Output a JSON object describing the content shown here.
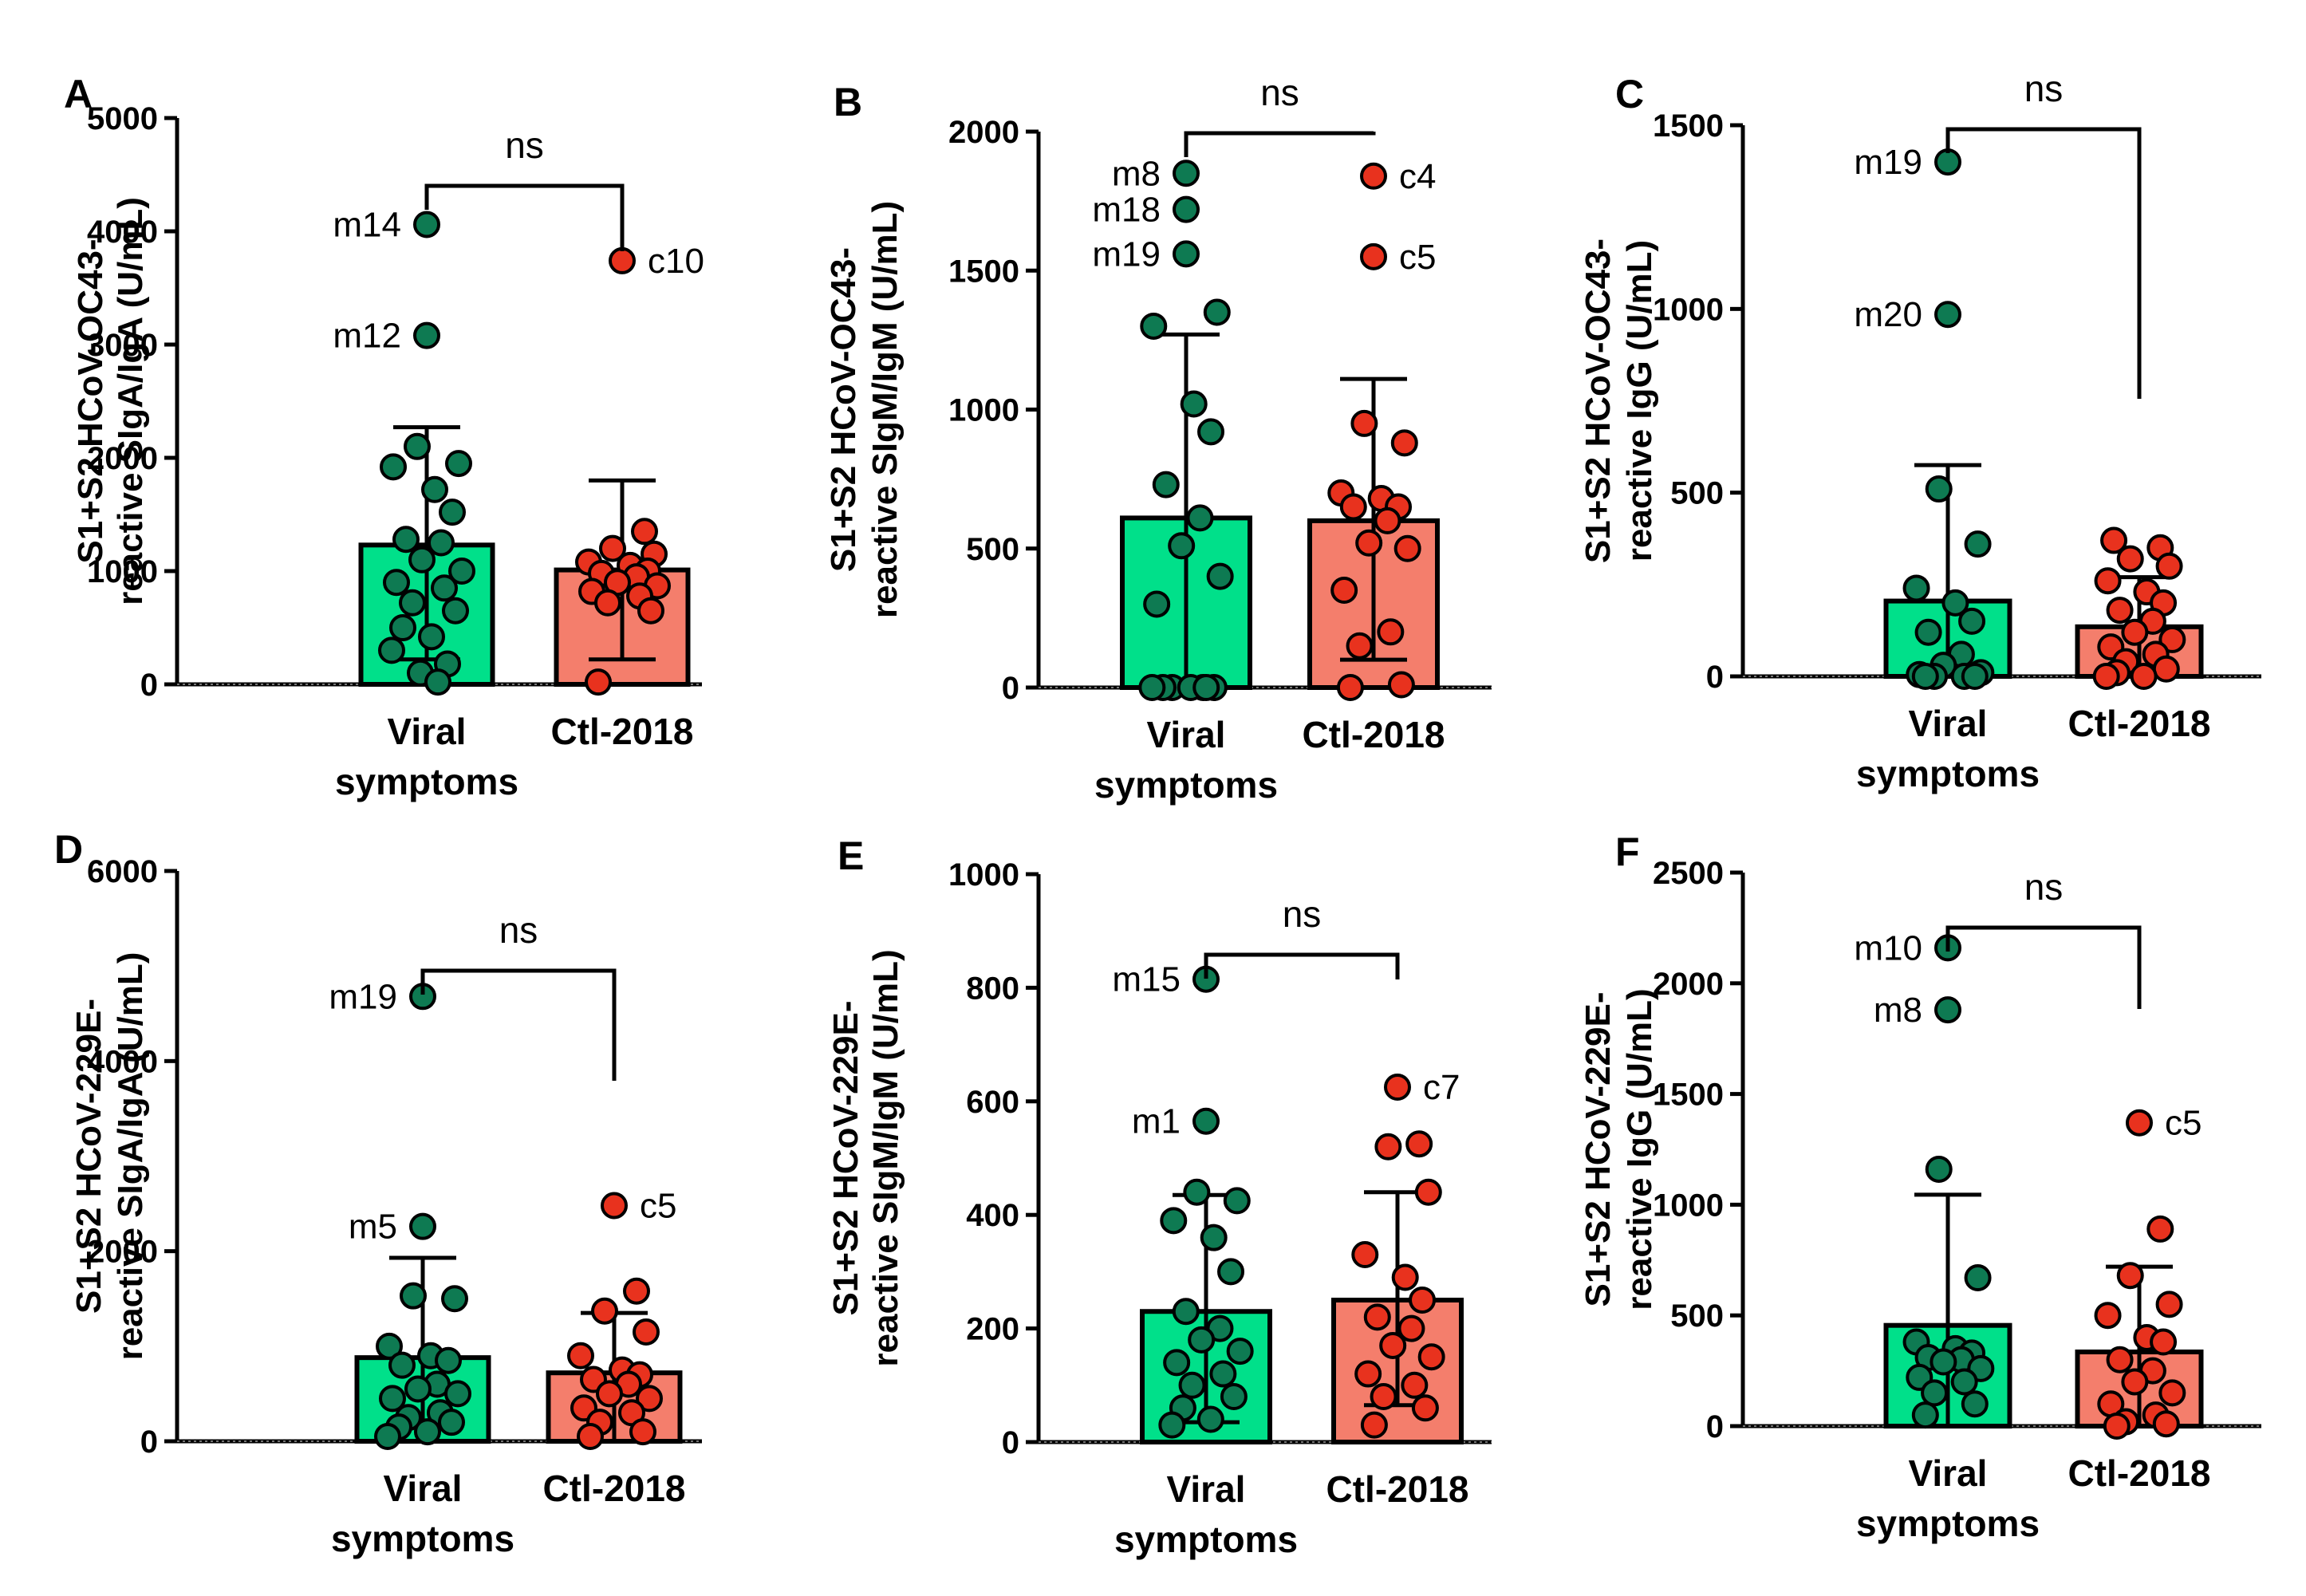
{
  "colors": {
    "viral_bar": "#00e08a",
    "viral_point": "#0e7a52",
    "control_bar": "#f47e6c",
    "control_point": "#e8321e",
    "outline": "#000000"
  },
  "chart_data": [
    {
      "panel": "A",
      "type": "bar",
      "ylabel_line1": "S1+S2 HCoV-OC43-",
      "ylabel_line2": "reactive SIgA/IgA (U/mL)",
      "ylim": [
        0,
        5000
      ],
      "yticks": [
        0,
        1000,
        2000,
        3000,
        4000,
        5000
      ],
      "significance": "ns",
      "groups": [
        {
          "name": "viral",
          "label_line1": "Viral",
          "label_line2": "symptoms",
          "mean": 1230,
          "sd_low": 220,
          "sd_high": 2270,
          "points": [
            4060,
            3080,
            2100,
            1950,
            1920,
            1720,
            1520,
            1280,
            1250,
            1100,
            1000,
            900,
            850,
            720,
            650,
            500,
            420,
            300,
            180,
            100,
            20
          ],
          "labels": [
            {
              "text": "m14",
              "value": 4060
            },
            {
              "text": "m12",
              "value": 3080
            }
          ]
        },
        {
          "name": "control",
          "label_line1": "Ctl-2018",
          "label_line2": "",
          "mean": 1010,
          "sd_low": 220,
          "sd_high": 1800,
          "points": [
            3740,
            1350,
            1200,
            1150,
            1080,
            1050,
            1000,
            980,
            950,
            900,
            870,
            820,
            780,
            720,
            650,
            20
          ],
          "labels": [
            {
              "text": "c10",
              "value": 3740
            }
          ]
        }
      ]
    },
    {
      "panel": "B",
      "type": "bar",
      "ylabel_line1": "S1+S2 HCoV-OC43-",
      "ylabel_line2": "reactive SIgM/IgM (U/mL)",
      "ylim": [
        0,
        2000
      ],
      "yticks": [
        0,
        500,
        1000,
        1500,
        2000
      ],
      "significance": "ns",
      "groups": [
        {
          "name": "viral",
          "label_line1": "Viral",
          "label_line2": "symptoms",
          "mean": 610,
          "sd_low": 0,
          "sd_high": 1270,
          "points": [
            1850,
            1720,
            1560,
            1350,
            1300,
            1020,
            920,
            730,
            610,
            510,
            400,
            300,
            0,
            0,
            0,
            0,
            0,
            0,
            0
          ],
          "labels": [
            {
              "text": "m8",
              "value": 1850
            },
            {
              "text": "m18",
              "value": 1720
            },
            {
              "text": "m19",
              "value": 1560
            }
          ]
        },
        {
          "name": "control",
          "label_line1": "Ctl-2018",
          "label_line2": "",
          "mean": 600,
          "sd_low": 100,
          "sd_high": 1110,
          "points": [
            1840,
            1550,
            950,
            880,
            700,
            680,
            650,
            650,
            600,
            520,
            500,
            350,
            200,
            150,
            10,
            0
          ],
          "labels": [
            {
              "text": "c4",
              "value": 1840
            },
            {
              "text": "c5",
              "value": 1550
            }
          ]
        }
      ]
    },
    {
      "panel": "C",
      "type": "bar",
      "ylabel_line1": "S1+S2 HCoV-OC43-",
      "ylabel_line2": "reactive IgG (U/mL)",
      "ylim": [
        0,
        1500
      ],
      "yticks": [
        0,
        500,
        1000,
        1500
      ],
      "significance": "ns",
      "groups": [
        {
          "name": "viral",
          "label_line1": "Viral",
          "label_line2": "symptoms",
          "mean": 205,
          "sd_low": 0,
          "sd_high": 575,
          "points": [
            1400,
            985,
            510,
            360,
            240,
            200,
            150,
            120,
            60,
            30,
            10,
            5,
            0,
            0,
            0,
            0
          ],
          "labels": [
            {
              "text": "m19",
              "value": 1400
            },
            {
              "text": "m20",
              "value": 985
            }
          ]
        },
        {
          "name": "control",
          "label_line1": "Ctl-2018",
          "label_line2": "",
          "mean": 135,
          "sd_low": 0,
          "sd_high": 270,
          "points": [
            370,
            350,
            320,
            300,
            260,
            230,
            200,
            180,
            150,
            120,
            100,
            80,
            60,
            40,
            20,
            10,
            0,
            0
          ],
          "labels": []
        }
      ]
    },
    {
      "panel": "D",
      "type": "bar",
      "ylabel_line1": "S1+S2 HCoV-229E-",
      "ylabel_line2": "reactive SIgA/IgA (U/mL)",
      "ylim": [
        0,
        6000
      ],
      "yticks": [
        0,
        2000,
        4000,
        6000
      ],
      "significance": "ns",
      "groups": [
        {
          "name": "viral",
          "label_line1": "Viral",
          "label_line2": "symptoms",
          "mean": 880,
          "sd_low": 0,
          "sd_high": 1930,
          "points": [
            4680,
            2260,
            1530,
            1500,
            1000,
            900,
            850,
            800,
            600,
            550,
            500,
            450,
            300,
            250,
            200,
            150,
            100,
            50
          ],
          "labels": [
            {
              "text": "m19",
              "value": 4680
            },
            {
              "text": "m5",
              "value": 2260
            }
          ]
        },
        {
          "name": "control",
          "label_line1": "Ctl-2018",
          "label_line2": "",
          "mean": 720,
          "sd_low": 0,
          "sd_high": 1350,
          "points": [
            2480,
            1580,
            1370,
            1150,
            900,
            750,
            700,
            650,
            600,
            500,
            450,
            350,
            300,
            200,
            100,
            50
          ],
          "labels": [
            {
              "text": "c5",
              "value": 2480
            }
          ]
        }
      ]
    },
    {
      "panel": "E",
      "type": "bar",
      "ylabel_line1": "S1+S2 HCoV-229E-",
      "ylabel_line2": "reactive SIgM/IgM (U/mL)",
      "ylim": [
        0,
        1000
      ],
      "yticks": [
        0,
        200,
        400,
        600,
        800,
        1000
      ],
      "significance": "ns",
      "groups": [
        {
          "name": "viral",
          "label_line1": "Viral",
          "label_line2": "symptoms",
          "mean": 230,
          "sd_low": 35,
          "sd_high": 435,
          "points": [
            815,
            565,
            440,
            425,
            390,
            360,
            300,
            230,
            200,
            180,
            160,
            140,
            120,
            100,
            80,
            60,
            40,
            30
          ],
          "labels": [
            {
              "text": "m15",
              "value": 815
            },
            {
              "text": "m1",
              "value": 565
            }
          ]
        },
        {
          "name": "control",
          "label_line1": "Ctl-2018",
          "label_line2": "",
          "mean": 250,
          "sd_low": 65,
          "sd_high": 440,
          "points": [
            625,
            525,
            520,
            440,
            330,
            290,
            250,
            220,
            200,
            170,
            150,
            120,
            100,
            80,
            60,
            30
          ],
          "labels": [
            {
              "text": "c7",
              "value": 625
            }
          ]
        }
      ]
    },
    {
      "panel": "F",
      "type": "bar",
      "ylabel_line1": "S1+S2 HCoV-229E-",
      "ylabel_line2": "reactive IgG (U/mL)",
      "ylim": [
        0,
        2500
      ],
      "yticks": [
        0,
        500,
        1000,
        1500,
        2000,
        2500
      ],
      "significance": "ns",
      "groups": [
        {
          "name": "viral",
          "label_line1": "Viral",
          "label_line2": "symptoms",
          "mean": 455,
          "sd_low": 0,
          "sd_high": 1045,
          "points": [
            2160,
            1880,
            1160,
            670,
            380,
            350,
            330,
            310,
            300,
            290,
            260,
            220,
            200,
            150,
            100,
            50
          ],
          "labels": [
            {
              "text": "m10",
              "value": 2160
            },
            {
              "text": "m8",
              "value": 1880
            }
          ]
        },
        {
          "name": "control",
          "label_line1": "Ctl-2018",
          "label_line2": "",
          "mean": 335,
          "sd_low": 0,
          "sd_high": 720,
          "points": [
            1370,
            890,
            680,
            550,
            500,
            400,
            380,
            300,
            250,
            200,
            150,
            100,
            50,
            20,
            10,
            0
          ],
          "labels": [
            {
              "text": "c5",
              "value": 1370
            }
          ]
        }
      ]
    }
  ]
}
